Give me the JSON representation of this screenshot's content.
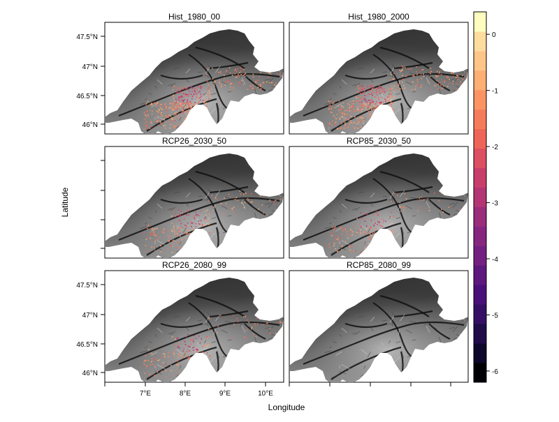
{
  "panels": [
    {
      "title": "Hist_1980_00",
      "intensity": 1.0
    },
    {
      "title": "Hist_1980_2000",
      "intensity": 1.0
    },
    {
      "title": "RCP26_2030_50",
      "intensity": 0.45
    },
    {
      "title": "RCP85_2030_50",
      "intensity": 0.35
    },
    {
      "title": "RCP26_2080_99",
      "intensity": 0.38
    },
    {
      "title": "RCP85_2080_99",
      "intensity": 0.0
    }
  ],
  "axes": {
    "xlabel": "Longitude",
    "ylabel": "Latitude",
    "lat_ticks": [
      "47.5°N",
      "47°N",
      "46.5°N",
      "46°N"
    ],
    "lon_ticks": [
      "7°E",
      "8°E",
      "9°E",
      "10°E"
    ]
  },
  "colorbar": {
    "ticks": [
      "0",
      "-1",
      "-2",
      "-3",
      "-4",
      "-5",
      "-6"
    ],
    "range": [
      -6.2,
      0.4
    ],
    "colors": [
      "#000004",
      "#0d0829",
      "#1f0c48",
      "#350f63",
      "#4a1079",
      "#5d177f",
      "#721f81",
      "#86267f",
      "#9b2d7b",
      "#b33574",
      "#c83e6b",
      "#dc4f61",
      "#ee6459",
      "#f57c5b",
      "#fb9462",
      "#fdae73",
      "#fdc587",
      "#fddd9e",
      "#fcfdbf"
    ]
  }
}
